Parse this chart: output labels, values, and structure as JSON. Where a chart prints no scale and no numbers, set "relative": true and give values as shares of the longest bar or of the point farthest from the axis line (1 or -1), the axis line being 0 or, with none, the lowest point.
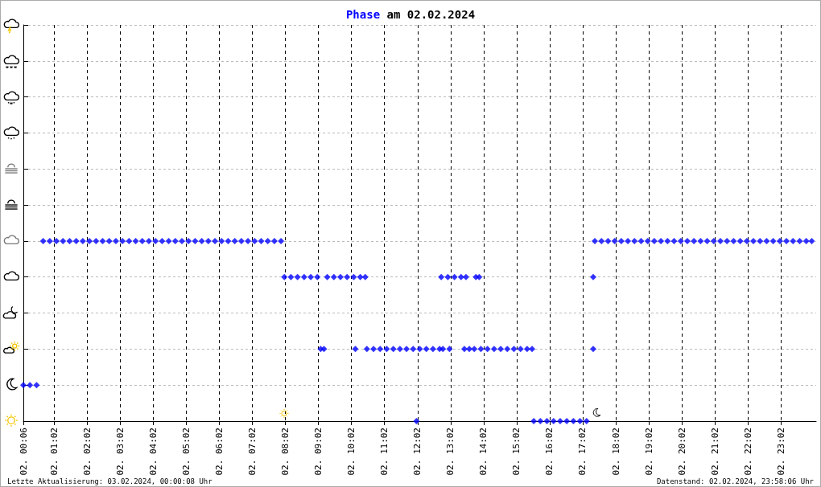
{
  "chart_data": {
    "type": "scatter",
    "title": "Phase am 02.02.2024",
    "relative": true,
    "marker": "diamond",
    "color": "#0000ff",
    "grid": true,
    "annotations": [
      "Letzte Aktualisierung: 03.02.2024, 00:00:08 Uhr",
      "Datenstand: 02.02.2024, 23:58:06 Uhr"
    ],
    "xlim": [
      "2024-02-02T00:06",
      "2024-02-03T00:06"
    ],
    "xticks": [
      {
        "value": "2024-02-02T00:06",
        "label": "02. 00:06"
      },
      {
        "value": "2024-02-02T01:02",
        "label": "02. 01:02"
      },
      {
        "value": "2024-02-02T02:02",
        "label": "02. 02:02"
      },
      {
        "value": "2024-02-02T03:02",
        "label": "02. 03:02"
      },
      {
        "value": "2024-02-02T04:02",
        "label": "02. 04:02"
      },
      {
        "value": "2024-02-02T05:02",
        "label": "02. 05:02"
      },
      {
        "value": "2024-02-02T06:02",
        "label": "02. 06:02"
      },
      {
        "value": "2024-02-02T07:02",
        "label": "02. 07:02"
      },
      {
        "value": "2024-02-02T08:02",
        "label": "02. 08:02"
      },
      {
        "value": "2024-02-02T09:02",
        "label": "02. 09:02"
      },
      {
        "value": "2024-02-02T10:02",
        "label": "02. 10:02"
      },
      {
        "value": "2024-02-02T11:02",
        "label": "02. 11:02"
      },
      {
        "value": "2024-02-02T12:02",
        "label": "02. 12:02"
      },
      {
        "value": "2024-02-02T13:02",
        "label": "02. 13:02"
      },
      {
        "value": "2024-02-02T14:02",
        "label": "02. 14:02"
      },
      {
        "value": "2024-02-02T15:02",
        "label": "02. 15:02"
      },
      {
        "value": "2024-02-02T16:02",
        "label": "02. 16:02"
      },
      {
        "value": "2024-02-02T17:02",
        "label": "02. 17:02"
      },
      {
        "value": "2024-02-02T18:02",
        "label": "02. 18:02"
      },
      {
        "value": "2024-02-02T19:02",
        "label": "02. 19:02"
      },
      {
        "value": "2024-02-02T20:02",
        "label": "02. 20:02"
      },
      {
        "value": "2024-02-02T21:02",
        "label": "02. 21:02"
      },
      {
        "value": "2024-02-02T22:02",
        "label": "02. 22:02"
      },
      {
        "value": "2024-02-02T23:02",
        "label": "02. 23:02"
      }
    ],
    "x": [
      "2024-02-02T00:06",
      "2024-02-02T00:18",
      "2024-02-02T00:30",
      "2024-02-02T00:42",
      "2024-02-02T00:54",
      "2024-02-02T01:06",
      "2024-02-02T01:18",
      "2024-02-02T01:30",
      "2024-02-02T01:42",
      "2024-02-02T01:54",
      "2024-02-02T02:06",
      "2024-02-02T02:18",
      "2024-02-02T02:30",
      "2024-02-02T02:42",
      "2024-02-02T02:54",
      "2024-02-02T03:06",
      "2024-02-02T03:18",
      "2024-02-02T03:30",
      "2024-02-02T03:42",
      "2024-02-02T03:54",
      "2024-02-02T04:06",
      "2024-02-02T04:18",
      "2024-02-02T04:30",
      "2024-02-02T04:42",
      "2024-02-02T04:54",
      "2024-02-02T05:06",
      "2024-02-02T05:18",
      "2024-02-02T05:30",
      "2024-02-02T05:42",
      "2024-02-02T05:54",
      "2024-02-02T06:06",
      "2024-02-02T06:18",
      "2024-02-02T06:30",
      "2024-02-02T06:42",
      "2024-02-02T06:54",
      "2024-02-02T07:06",
      "2024-02-02T07:18",
      "2024-02-02T07:30",
      "2024-02-02T07:42",
      "2024-02-02T07:54",
      "2024-02-02T08:00",
      "2024-02-02T08:12",
      "2024-02-02T08:24",
      "2024-02-02T08:36",
      "2024-02-02T08:48",
      "2024-02-02T09:00",
      "2024-02-02T09:06",
      "2024-02-02T09:12",
      "2024-02-02T09:18",
      "2024-02-02T09:30",
      "2024-02-02T09:42",
      "2024-02-02T09:54",
      "2024-02-02T10:06",
      "2024-02-02T10:09",
      "2024-02-02T10:18",
      "2024-02-02T10:27",
      "2024-02-02T10:30",
      "2024-02-02T10:42",
      "2024-02-02T10:54",
      "2024-02-02T11:06",
      "2024-02-02T11:18",
      "2024-02-02T11:30",
      "2024-02-02T11:42",
      "2024-02-02T11:54",
      "2024-02-02T12:06",
      "2024-02-02T12:18",
      "2024-02-02T12:30",
      "2024-02-02T12:42",
      "2024-02-02T12:48",
      "2024-02-02T12:00",
      "2024-02-02T13:00",
      "2024-02-02T12:45",
      "2024-02-02T12:57",
      "2024-02-02T13:09",
      "2024-02-02T13:21",
      "2024-02-02T13:30",
      "2024-02-02T13:27",
      "2024-02-02T13:36",
      "2024-02-02T13:45",
      "2024-02-02T13:48",
      "2024-02-02T13:54",
      "2024-02-02T13:57",
      "2024-02-02T14:09",
      "2024-02-02T14:21",
      "2024-02-02T14:33",
      "2024-02-02T14:45",
      "2024-02-02T14:57",
      "2024-02-02T15:09",
      "2024-02-02T15:21",
      "2024-02-02T15:30",
      "2024-02-02T15:33",
      "2024-02-02T15:45",
      "2024-02-02T15:57",
      "2024-02-02T16:09",
      "2024-02-02T16:21",
      "2024-02-02T16:33",
      "2024-02-02T16:45",
      "2024-02-02T16:57",
      "2024-02-02T17:09",
      "2024-02-02T17:21",
      "2024-02-02T17:21",
      "2024-02-02T17:24",
      "2024-02-02T17:36",
      "2024-02-02T17:48",
      "2024-02-02T18:00",
      "2024-02-02T18:12",
      "2024-02-02T18:24",
      "2024-02-02T18:36",
      "2024-02-02T18:48",
      "2024-02-02T19:00",
      "2024-02-02T19:12",
      "2024-02-02T19:24",
      "2024-02-02T19:36",
      "2024-02-02T19:48",
      "2024-02-02T20:00",
      "2024-02-02T20:12",
      "2024-02-02T20:24",
      "2024-02-02T20:36",
      "2024-02-02T20:48",
      "2024-02-02T21:00",
      "2024-02-02T21:12",
      "2024-02-02T21:24",
      "2024-02-02T21:36",
      "2024-02-02T21:48",
      "2024-02-02T22:00",
      "2024-02-02T22:12",
      "2024-02-02T22:24",
      "2024-02-02T22:36",
      "2024-02-02T22:48",
      "2024-02-02T23:00",
      "2024-02-02T23:12",
      "2024-02-02T23:24",
      "2024-02-02T23:36",
      "2024-02-02T23:48",
      "2024-02-02T23:58"
    ],
    "values": [
      0.2,
      0.2,
      0.2,
      1,
      1,
      1,
      1,
      1,
      1,
      1,
      1,
      1,
      1,
      1,
      1,
      1,
      1,
      1,
      1,
      1,
      1,
      1,
      1,
      1,
      1,
      1,
      1,
      1,
      1,
      1,
      1,
      1,
      1,
      1,
      1,
      1,
      1,
      1,
      1,
      1,
      0.8,
      0.8,
      0.8,
      0.8,
      0.8,
      0.8,
      0.4,
      0.4,
      0.8,
      0.8,
      0.8,
      0.8,
      0.8,
      0.4,
      0.8,
      0.8,
      0.4,
      0.4,
      0.4,
      0.4,
      0.4,
      0.4,
      0.4,
      0.4,
      0.4,
      0.4,
      0.4,
      0.4,
      0.4,
      0,
      0.4,
      0.8,
      0.8,
      0.8,
      0.8,
      0.8,
      0.4,
      0.4,
      0.4,
      0.8,
      0.8,
      0.4,
      0.4,
      0.4,
      0.4,
      0.4,
      0.4,
      0.4,
      0.4,
      0.4,
      0,
      0,
      0,
      0,
      0,
      0,
      0,
      0,
      0,
      0.8,
      0.4,
      1,
      1,
      1,
      1,
      1,
      1,
      1,
      1,
      1,
      1,
      1,
      1,
      1,
      1,
      1,
      1,
      1,
      1,
      1,
      1,
      1,
      1,
      1,
      1,
      1,
      1,
      1,
      1,
      1,
      1,
      1,
      1,
      1,
      1
    ]
  }
}
